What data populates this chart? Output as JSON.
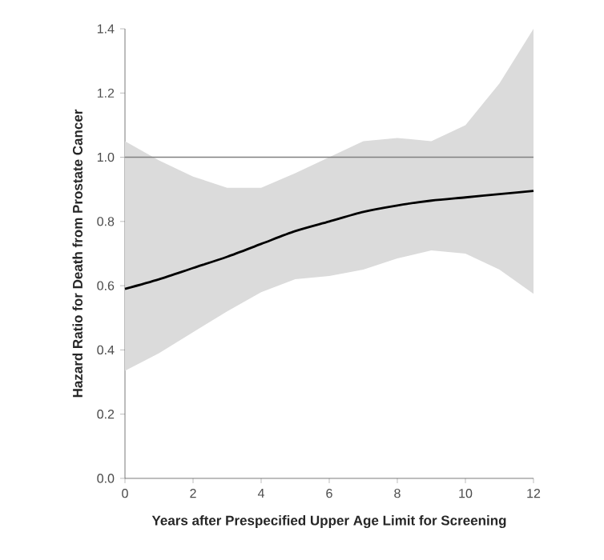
{
  "chart_data": {
    "type": "line",
    "xlabel": "Years after Prespecified Upper Age Limit for Screening",
    "ylabel": "Hazard Ratio for Death from Prostate Cancer",
    "x": [
      0,
      1,
      2,
      3,
      4,
      5,
      6,
      7,
      8,
      9,
      10,
      11,
      12
    ],
    "series": [
      {
        "color": "#000000",
        "values": [
          0.59,
          0.62,
          0.655,
          0.69,
          0.73,
          0.77,
          0.8,
          0.83,
          0.85,
          0.865,
          0.875,
          0.885,
          0.895
        ],
        "lower": [
          0.335,
          0.39,
          0.455,
          0.52,
          0.58,
          0.62,
          0.63,
          0.65,
          0.685,
          0.71,
          0.7,
          0.65,
          0.575
        ],
        "upper": [
          1.05,
          0.99,
          0.94,
          0.905,
          0.905,
          0.95,
          1.0,
          1.05,
          1.06,
          1.05,
          1.1,
          1.23,
          1.4
        ]
      }
    ],
    "xlim": [
      0,
      12
    ],
    "ylim": [
      0,
      1.4
    ],
    "xticks": [
      0,
      2,
      4,
      6,
      8,
      10,
      12
    ],
    "yticks": [
      {
        "value": 0,
        "label": "0.0"
      },
      0.2,
      0.4,
      0.6,
      0.8,
      {
        "value": 1.0,
        "label": "1.0"
      },
      1.2,
      1.4
    ],
    "ref_lines": [
      {
        "axis": "y",
        "value": 1.0,
        "color": "#808080"
      }
    ],
    "grid": false,
    "marker": "none",
    "line_style": "solid"
  }
}
